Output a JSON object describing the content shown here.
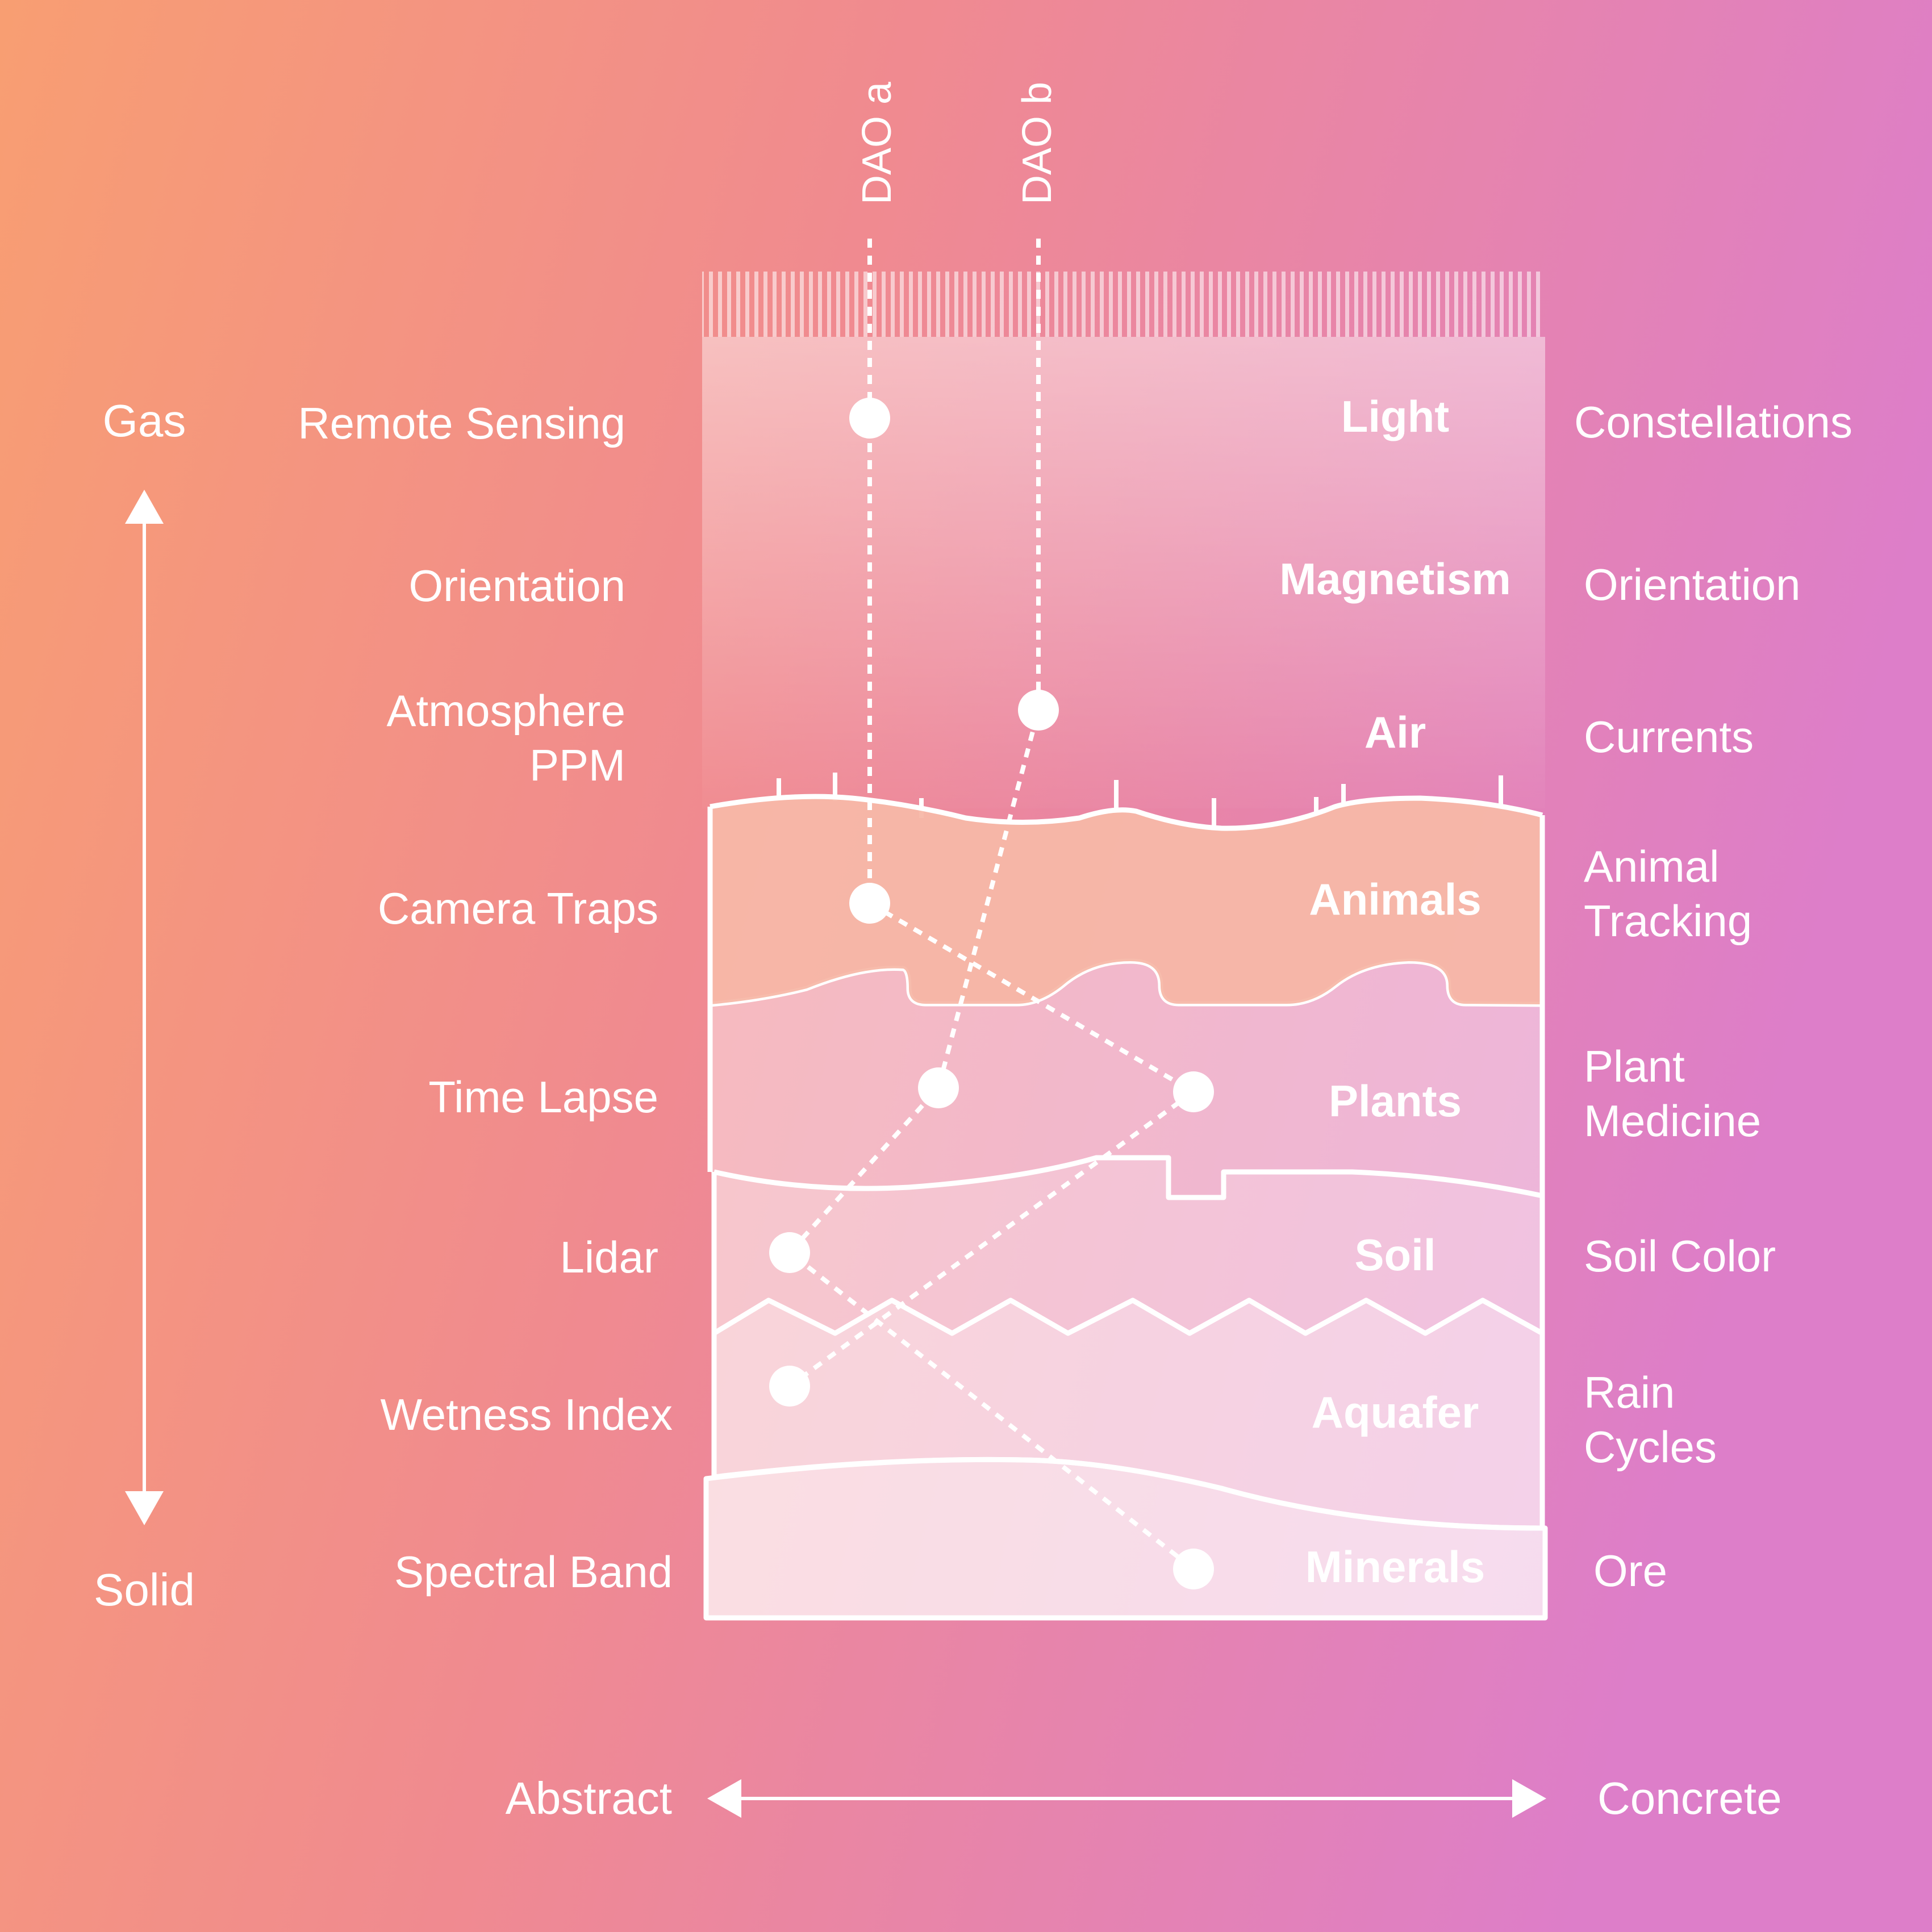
{
  "colors": {
    "background_start": "#f89e72",
    "background_end": "#df7ec8",
    "line": "#ffffff"
  },
  "axes": {
    "vertical": {
      "top_label": "Gas",
      "bottom_label": "Solid"
    },
    "horizontal": {
      "left_label": "Abstract",
      "right_label": "Concrete"
    }
  },
  "dao": {
    "a_label": "DAO a",
    "b_label": "DAO b"
  },
  "layers": [
    {
      "name": "Light",
      "sensing": [
        "Remote Sensing"
      ],
      "outcome": [
        "Constellations"
      ]
    },
    {
      "name": "Magnetism",
      "sensing": [
        "Orientation"
      ],
      "outcome": [
        "Orientation"
      ]
    },
    {
      "name": "Air",
      "sensing": [
        "Atmosphere",
        "PPM"
      ],
      "outcome": [
        "Currents"
      ]
    },
    {
      "name": "Animals",
      "sensing": [
        "Camera Traps"
      ],
      "outcome": [
        "Animal",
        "Tracking"
      ]
    },
    {
      "name": "Plants",
      "sensing": [
        "Time Lapse"
      ],
      "outcome": [
        "Plant",
        "Medicine"
      ]
    },
    {
      "name": "Soil",
      "sensing": [
        "Lidar"
      ],
      "outcome": [
        "Soil Color"
      ]
    },
    {
      "name": "Aquafer",
      "sensing": [
        "Wetness Index"
      ],
      "outcome": [
        "Rain",
        "Cycles"
      ]
    },
    {
      "name": "Minerals",
      "sensing": [
        "Spectral Band"
      ],
      "outcome": [
        "Ore"
      ]
    }
  ]
}
